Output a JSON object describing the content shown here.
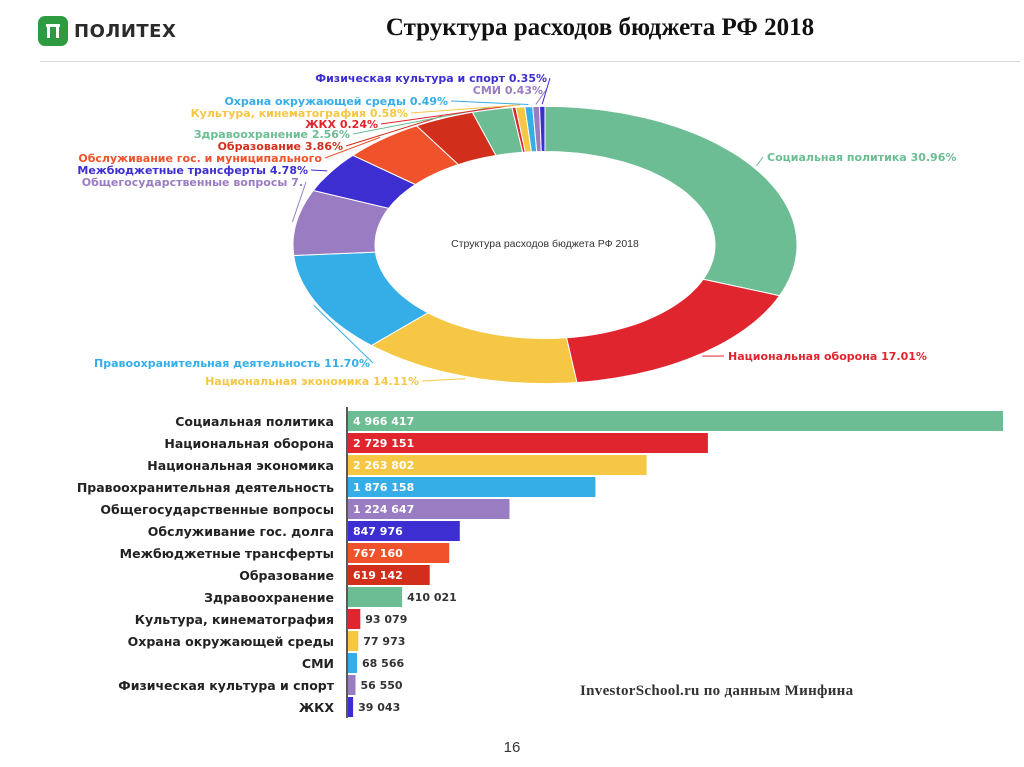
{
  "header": {
    "logo_text": "ПОЛИТЕХ",
    "title": "Структура расходов бюджета РФ 2018"
  },
  "footer": {
    "page_number": "16",
    "source": "InvestorSchool.ru по данным Минфина"
  },
  "chart_data": [
    {
      "type": "pie",
      "variant": "donut",
      "title": "Структура расходов бюджета РФ 2018",
      "slices": [
        {
          "label": "Социальная политика 30.96%",
          "value": 30.96,
          "color": "#6cbd93"
        },
        {
          "label": "Национальная оборона 17.01%",
          "value": 17.01,
          "color": "#e0252f"
        },
        {
          "label": "Национальная экономика 14.11%",
          "value": 14.11,
          "color": "#f6c744"
        },
        {
          "label": "Правоохранительная деятельность 11.70%",
          "value": 11.7,
          "color": "#35aee8"
        },
        {
          "label": "Общегосударственные вопросы 7.",
          "value": 7.63,
          "color": "#9a7cc2"
        },
        {
          "label": "Межбюджетные трансферты 4.78%",
          "value": 4.78,
          "color": "#3d2ed1"
        },
        {
          "label": "Обслуживание гос. и муниципального",
          "value": 5.28,
          "color": "#f0522b"
        },
        {
          "label": "Образование 3.86%",
          "value": 3.86,
          "color": "#d12f1c"
        },
        {
          "label": "Здравоохранение 2.56%",
          "value": 2.56,
          "color": "#6cbd93"
        },
        {
          "label": "ЖКХ 0.24%",
          "value": 0.24,
          "color": "#e0252f"
        },
        {
          "label": "Культура, кинематография 0.58%",
          "value": 0.58,
          "color": "#f6c744"
        },
        {
          "label": "Охрана окружающей среды 0.49%",
          "value": 0.49,
          "color": "#35aee8"
        },
        {
          "label": "СМИ 0.43%",
          "value": 0.43,
          "color": "#9a7cc2"
        },
        {
          "label": "Физическая культура и спорт 0.35%",
          "value": 0.35,
          "color": "#3d2ed1"
        }
      ]
    },
    {
      "type": "bar",
      "orientation": "horizontal",
      "categories": [
        "Социальная политика",
        "Национальная оборона",
        "Национальная экономика",
        "Правоохранительная деятельность",
        "Общегосударственные вопросы",
        "Обслуживание гос. долга",
        "Межбюджетные трансферты",
        "Образование",
        "Здравоохранение",
        "Культура, кинематография",
        "Охрана окружающей среды",
        "СМИ",
        "Физическая культура и спорт",
        "ЖКХ"
      ],
      "values": [
        4966417,
        2729151,
        2263802,
        1876158,
        1224647,
        847976,
        767160,
        619142,
        410021,
        93079,
        77973,
        68566,
        56550,
        39043
      ],
      "value_labels": [
        "4 966 417",
        "2 729 151",
        "2 263 802",
        "1 876 158",
        "1 224 647",
        "847 976",
        "767 160",
        "619 142",
        "410 021",
        "93 079",
        "77 973",
        "68 566",
        "56 550",
        "39 043"
      ],
      "colors": [
        "#6cbd93",
        "#e0252f",
        "#f6c744",
        "#35aee8",
        "#9a7cc2",
        "#3d2ed1",
        "#f0522b",
        "#d12f1c",
        "#6cbd93",
        "#e0252f",
        "#f6c744",
        "#35aee8",
        "#9a7cc2",
        "#3d2ed1"
      ],
      "xlim": [
        0,
        4966417
      ]
    }
  ]
}
